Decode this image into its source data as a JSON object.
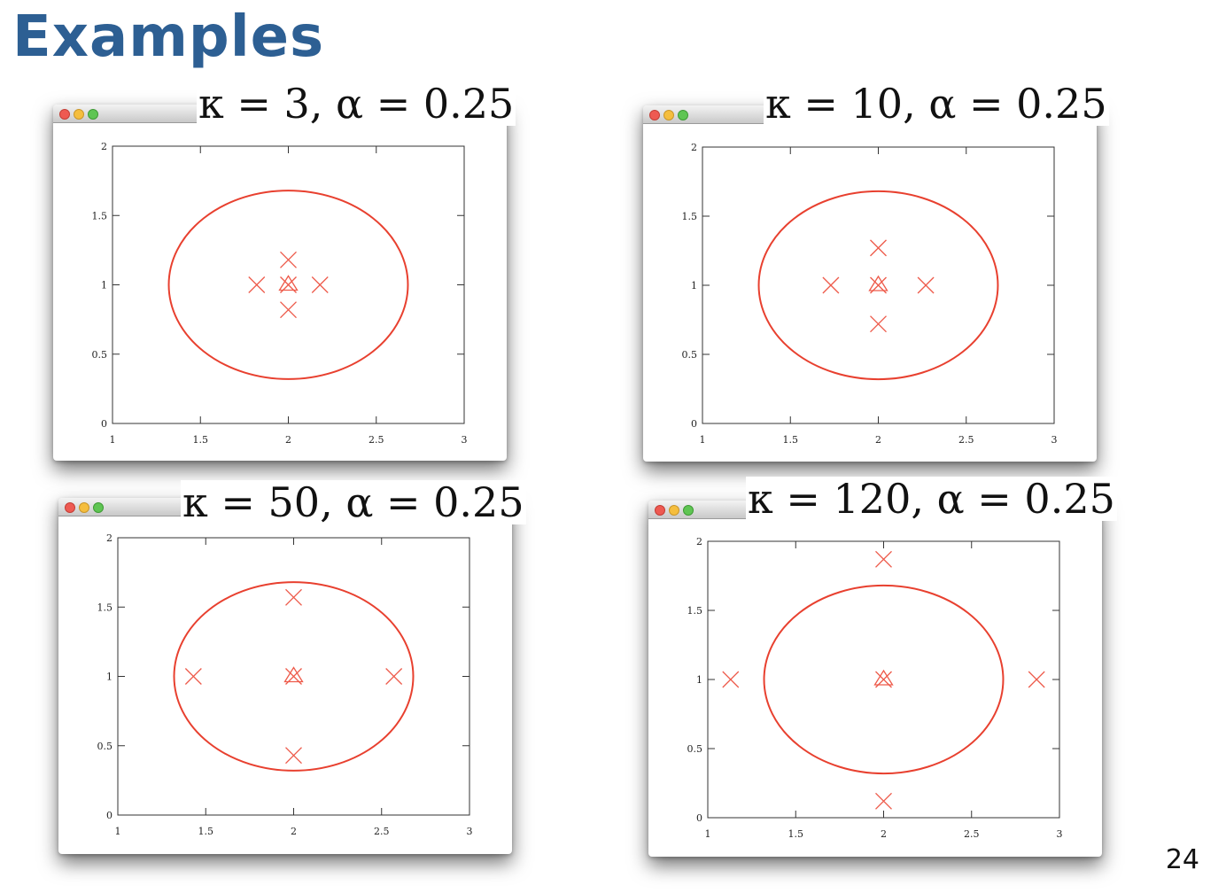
{
  "slide": {
    "title": "Examples",
    "page_number": "24"
  },
  "colors": {
    "title": "#2d5f93",
    "curve": "#e8402f",
    "marker": "#ee5a4a"
  },
  "chart_data": [
    {
      "type": "scatter",
      "title": "κ = 3, α = 0.25",
      "xlim": [
        1,
        3
      ],
      "ylim": [
        0,
        2
      ],
      "xticks": [
        1,
        1.5,
        2,
        2.5,
        3
      ],
      "yticks": [
        0,
        0.5,
        1,
        1.5,
        2
      ],
      "xtick_labels": [
        "1",
        "1.5",
        "2",
        "2.5",
        "3"
      ],
      "ytick_labels": [
        "0",
        "0.5",
        "1",
        "1.5",
        "2"
      ],
      "ellipse": {
        "center": [
          2,
          1
        ],
        "rx": 0.68,
        "ry": 0.68
      },
      "sigma_points": [
        [
          2,
          1.18
        ],
        [
          1.82,
          1.0
        ],
        [
          2.18,
          1.0
        ],
        [
          2,
          0.82
        ]
      ],
      "mean_markers": [
        [
          2,
          1.0
        ]
      ]
    },
    {
      "type": "scatter",
      "title": "κ = 10, α = 0.25",
      "xlim": [
        1,
        3
      ],
      "ylim": [
        0,
        2
      ],
      "xticks": [
        1,
        1.5,
        2,
        2.5,
        3
      ],
      "yticks": [
        0,
        0.5,
        1,
        1.5,
        2
      ],
      "xtick_labels": [
        "1",
        "1.5",
        "2",
        "2.5",
        "3"
      ],
      "ytick_labels": [
        "0",
        "0.5",
        "1",
        "1.5",
        "2"
      ],
      "ellipse": {
        "center": [
          2,
          1
        ],
        "rx": 0.68,
        "ry": 0.68
      },
      "sigma_points": [
        [
          2,
          1.27
        ],
        [
          1.73,
          1.0
        ],
        [
          2.27,
          1.0
        ],
        [
          2,
          0.72
        ]
      ],
      "mean_markers": [
        [
          2,
          1.0
        ]
      ]
    },
    {
      "type": "scatter",
      "title": "κ = 50, α = 0.25",
      "xlim": [
        1,
        3
      ],
      "ylim": [
        0,
        2
      ],
      "xticks": [
        1,
        1.5,
        2,
        2.5,
        3
      ],
      "yticks": [
        0,
        0.5,
        1,
        1.5,
        2
      ],
      "xtick_labels": [
        "1",
        "1.5",
        "2",
        "2.5",
        "3"
      ],
      "ytick_labels": [
        "0",
        "0.5",
        "1",
        "1.5",
        "2"
      ],
      "ellipse": {
        "center": [
          2,
          1
        ],
        "rx": 0.68,
        "ry": 0.68
      },
      "sigma_points": [
        [
          2,
          1.57
        ],
        [
          1.43,
          1.0
        ],
        [
          2.57,
          1.0
        ],
        [
          2,
          0.43
        ]
      ],
      "mean_markers": [
        [
          2,
          1.0
        ]
      ]
    },
    {
      "type": "scatter",
      "title": "κ = 120, α = 0.25",
      "xlim": [
        1,
        3
      ],
      "ylim": [
        0,
        2
      ],
      "xticks": [
        1,
        1.5,
        2,
        2.5,
        3
      ],
      "yticks": [
        0,
        0.5,
        1,
        1.5,
        2
      ],
      "xtick_labels": [
        "1",
        "1.5",
        "2",
        "2.5",
        "3"
      ],
      "ytick_labels": [
        "0",
        "0.5",
        "1",
        "1.5",
        "2"
      ],
      "ellipse": {
        "center": [
          2,
          1
        ],
        "rx": 0.68,
        "ry": 0.68
      },
      "sigma_points": [
        [
          2,
          1.87
        ],
        [
          1.13,
          1.0
        ],
        [
          2.87,
          1.0
        ],
        [
          2,
          0.12
        ]
      ],
      "mean_markers": [
        [
          2,
          1.0
        ]
      ]
    }
  ]
}
